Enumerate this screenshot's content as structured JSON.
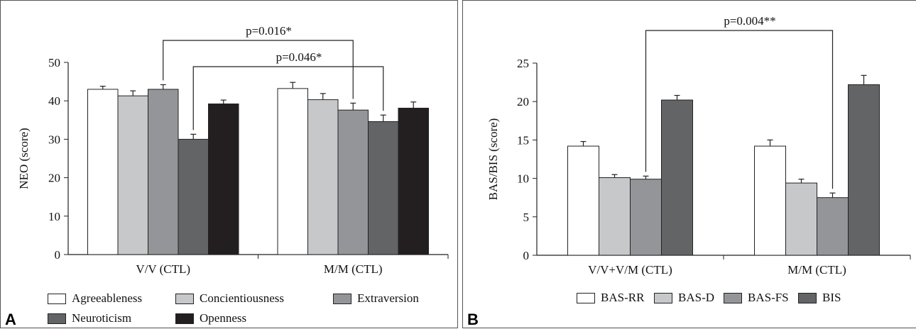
{
  "chart_data": [
    {
      "type": "bar",
      "panel_label": "A",
      "title": "",
      "xlabel": "",
      "ylabel": "NEO (score)",
      "ylim": [
        0,
        50
      ],
      "yticks": [
        0,
        10,
        20,
        30,
        40,
        50
      ],
      "categories": [
        "V/V (CTL)",
        "M/M (CTL)"
      ],
      "series": [
        {
          "name": "Agreeableness",
          "color": "#ffffff",
          "values": [
            43.0,
            43.2
          ],
          "errors": [
            0.8,
            1.6
          ]
        },
        {
          "name": "Concientiousness",
          "color": "#c7c8ca",
          "values": [
            41.3,
            40.3
          ],
          "errors": [
            1.3,
            1.6
          ]
        },
        {
          "name": "Extraversion",
          "color": "#939598",
          "values": [
            43.0,
            37.6
          ],
          "errors": [
            1.2,
            1.8
          ]
        },
        {
          "name": "Neuroticism",
          "color": "#636466",
          "values": [
            30.0,
            34.6
          ],
          "errors": [
            1.3,
            1.7
          ]
        },
        {
          "name": "Openness",
          "color": "#231f20",
          "values": [
            39.2,
            38.1
          ],
          "errors": [
            1.0,
            1.6
          ]
        }
      ],
      "annotations": [
        {
          "label": "p=0.016*",
          "from": [
            "V/V (CTL)",
            "Extraversion"
          ],
          "to": [
            "M/M (CTL)",
            "Extraversion"
          ]
        },
        {
          "label": "p=0.046*",
          "from": [
            "V/V (CTL)",
            "Neuroticism"
          ],
          "to": [
            "M/M (CTL)",
            "Neuroticism"
          ]
        }
      ],
      "legend_position": "bottom",
      "grid": false
    },
    {
      "type": "bar",
      "panel_label": "B",
      "title": "",
      "xlabel": "",
      "ylabel": "BAS/BIS (score)",
      "ylim": [
        0,
        25
      ],
      "yticks": [
        0,
        5,
        10,
        15,
        20,
        25
      ],
      "categories": [
        "V/V+V/M (CTL)",
        "M/M (CTL)"
      ],
      "series": [
        {
          "name": "BAS-RR",
          "color": "#ffffff",
          "values": [
            14.2,
            14.2
          ],
          "errors": [
            0.6,
            0.8
          ]
        },
        {
          "name": "BAS-D",
          "color": "#c7c8ca",
          "values": [
            10.1,
            9.4
          ],
          "errors": [
            0.4,
            0.5
          ]
        },
        {
          "name": "BAS-FS",
          "color": "#939598",
          "values": [
            9.9,
            7.5
          ],
          "errors": [
            0.4,
            0.6
          ]
        },
        {
          "name": "BIS",
          "color": "#636466",
          "values": [
            20.2,
            22.2
          ],
          "errors": [
            0.6,
            1.2
          ]
        }
      ],
      "annotations": [
        {
          "label": "p=0.004**",
          "from": [
            "V/V+V/M (CTL)",
            "BAS-FS"
          ],
          "to": [
            "M/M (CTL)",
            "BAS-FS"
          ]
        }
      ],
      "legend_position": "bottom",
      "grid": false
    }
  ]
}
